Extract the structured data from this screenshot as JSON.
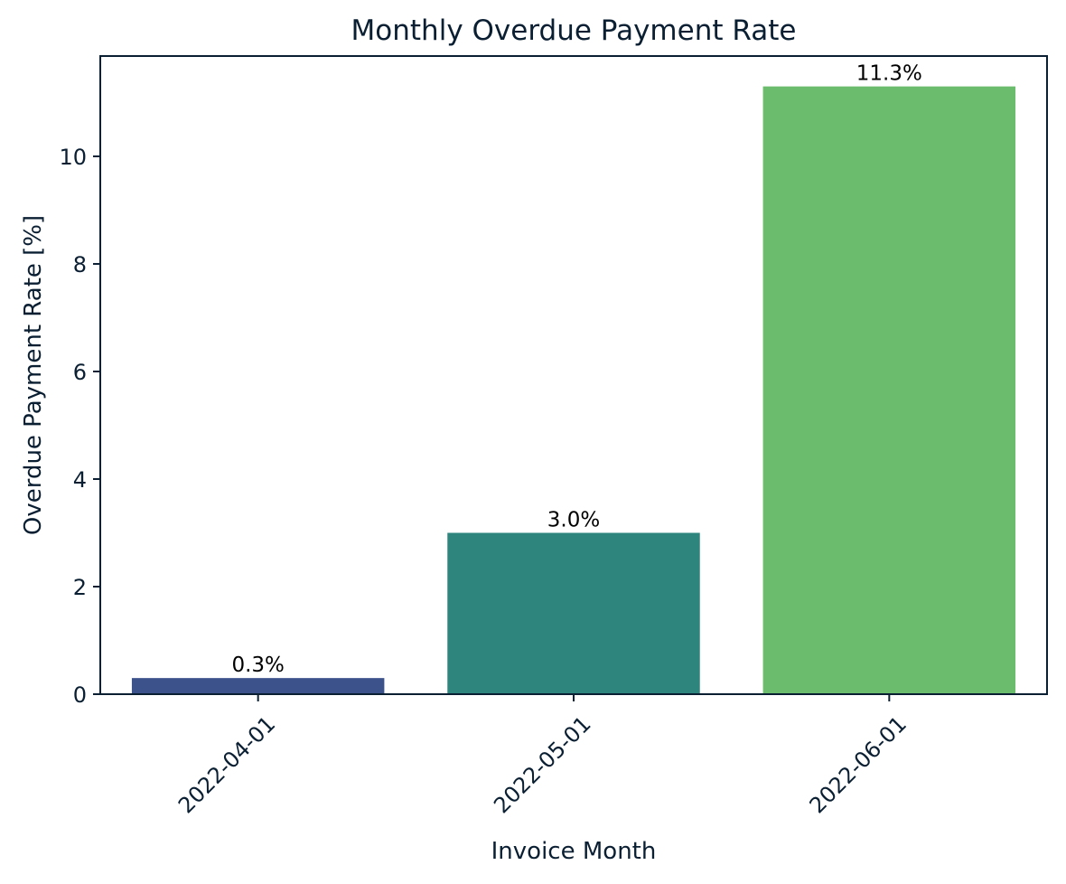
{
  "chart_data": {
    "type": "bar",
    "title": "Monthly Overdue Payment Rate",
    "xlabel": "Invoice Month",
    "ylabel": "Overdue Payment Rate [%]",
    "categories": [
      "2022-04-01",
      "2022-05-01",
      "2022-06-01"
    ],
    "values": [
      0.3,
      3.0,
      11.3
    ],
    "data_labels": [
      "0.3%",
      "3.0%",
      "11.3%"
    ],
    "colors": [
      "#3b528b",
      "#2e857d",
      "#6cbc6d"
    ],
    "ylim": [
      0,
      11.865
    ],
    "yticks": [
      0,
      2,
      4,
      6,
      8,
      10
    ],
    "ytick_labels": [
      "0",
      "2",
      "4",
      "6",
      "8",
      "10"
    ],
    "xtick_rotation": 45,
    "grid": false,
    "legend": "none"
  }
}
